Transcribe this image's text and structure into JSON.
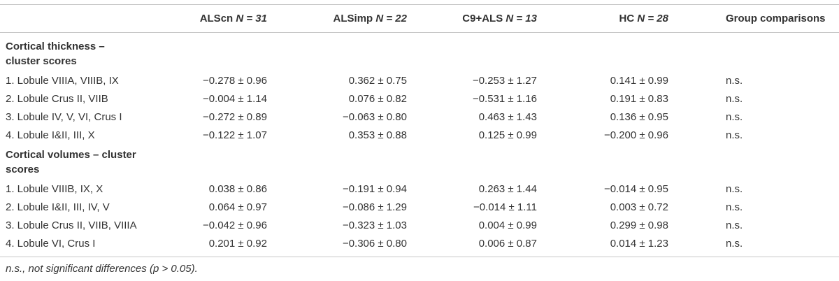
{
  "table": {
    "columns": [
      {
        "name": "ALScn",
        "n": "N = 31"
      },
      {
        "name": "ALSimp",
        "n": "N = 22"
      },
      {
        "name": "C9+ALS",
        "n": "N = 13"
      },
      {
        "name": "HC",
        "n": "N = 28"
      },
      {
        "name": "Group comparisons"
      }
    ],
    "sections": [
      {
        "title": "Cortical thickness – cluster scores",
        "rows": [
          {
            "label": "1. Lobule VIIIA, VIIIB, IX",
            "cells": [
              "−0.278 ± 0.96",
              "0.362 ± 0.75",
              "−0.253 ± 1.27",
              "0.141 ± 0.99",
              "n.s."
            ]
          },
          {
            "label": "2. Lobule Crus II, VIIB",
            "cells": [
              "−0.004 ± 1.14",
              "0.076 ± 0.82",
              "−0.531 ± 1.16",
              "0.191 ± 0.83",
              "n.s."
            ]
          },
          {
            "label": "3. Lobule IV, V, VI, Crus I",
            "cells": [
              "−0.272 ± 0.89",
              "−0.063 ± 0.80",
              "0.463 ± 1.43",
              "0.136 ± 0.95",
              "n.s."
            ]
          },
          {
            "label": "4. Lobule I&II, III, X",
            "cells": [
              "−0.122 ± 1.07",
              "0.353 ± 0.88",
              "0.125 ± 0.99",
              "−0.200 ± 0.96",
              "n.s."
            ]
          }
        ]
      },
      {
        "title": "Cortical volumes – cluster scores",
        "rows": [
          {
            "label": "1. Lobule VIIIB, IX, X",
            "cells": [
              "0.038 ± 0.86",
              "−0.191 ± 0.94",
              "0.263 ± 1.44",
              "−0.014 ± 0.95",
              "n.s."
            ]
          },
          {
            "label": "2. Lobule I&II, III, IV, V",
            "cells": [
              "0.064 ± 0.97",
              "−0.086 ± 1.29",
              "−0.014 ± 1.11",
              "0.003 ± 0.72",
              "n.s."
            ]
          },
          {
            "label": "3. Lobule Crus II, VIIB, VIIIA",
            "cells": [
              "−0.042 ± 0.96",
              "−0.323 ± 1.03",
              "0.004 ± 0.99",
              "0.299 ± 0.98",
              "n.s."
            ]
          },
          {
            "label": "4. Lobule VI, Crus I",
            "cells": [
              "0.201 ± 0.92",
              "−0.306 ± 0.80",
              "0.006 ± 0.87",
              "0.014 ± 1.23",
              "n.s."
            ]
          }
        ]
      }
    ],
    "footnote": "n.s., not significant differences (p > 0.05)."
  }
}
